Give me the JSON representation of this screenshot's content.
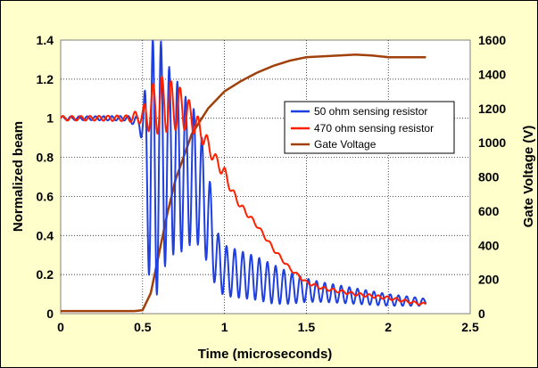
{
  "chart_data": {
    "type": "line",
    "xlabel": "Time (microseconds)",
    "ylabel": "Normalized beam",
    "y2label": "Gate Voltage (V)",
    "xlim": [
      0,
      2.5
    ],
    "ylim": [
      0,
      1.4
    ],
    "y2lim": [
      0,
      1600
    ],
    "xticks": [
      "0",
      "0.5",
      "1",
      "1.5",
      "2",
      "2.5"
    ],
    "yticks": [
      "0",
      "0.2",
      "0.4",
      "0.6",
      "0.8",
      "1",
      "1.2",
      "1.4"
    ],
    "y2ticks": [
      "0",
      "200",
      "400",
      "600",
      "800",
      "1000",
      "1200",
      "1400",
      "1600"
    ],
    "grid": "horizontal dotted",
    "legend_position": "upper-right",
    "series": [
      {
        "name": "50 ohm sensing resistor",
        "axis": "left",
        "color": "#1F3FE0",
        "style": "oscillating",
        "x": [
          0,
          0.2,
          0.4,
          0.48,
          0.5,
          0.55,
          0.6,
          0.65,
          0.7,
          0.75,
          0.8,
          0.85,
          0.9,
          0.95,
          1.0,
          1.1,
          1.2,
          1.3,
          1.4,
          1.5,
          1.6,
          1.8,
          2.0,
          2.2,
          2.23
        ],
        "y": [
          1.0,
          1.0,
          1.0,
          0.98,
          0.95,
          0.7,
          0.78,
          0.78,
          0.76,
          0.72,
          0.72,
          0.65,
          0.5,
          0.28,
          0.22,
          0.2,
          0.18,
          0.15,
          0.13,
          0.12,
          0.11,
          0.09,
          0.07,
          0.06,
          0.06
        ],
        "amp": [
          0.01,
          0.01,
          0.012,
          0.03,
          0.1,
          0.7,
          0.65,
          0.5,
          0.45,
          0.4,
          0.36,
          0.3,
          0.25,
          0.15,
          0.13,
          0.12,
          0.11,
          0.1,
          0.08,
          0.06,
          0.05,
          0.04,
          0.03,
          0.02,
          0.015
        ]
      },
      {
        "name": "470 ohm sensing resistor",
        "axis": "left",
        "color": "#FF2000",
        "style": "oscillating",
        "x": [
          0,
          0.2,
          0.4,
          0.5,
          0.55,
          0.6,
          0.7,
          0.75,
          0.8,
          0.85,
          0.9,
          0.95,
          1.0,
          1.05,
          1.1,
          1.2,
          1.3,
          1.4,
          1.5,
          1.6,
          1.8,
          2.0,
          2.2,
          2.23
        ],
        "y": [
          1.0,
          1.0,
          1.0,
          1.01,
          1.04,
          1.07,
          1.06,
          1.04,
          1.0,
          0.94,
          0.86,
          0.78,
          0.72,
          0.62,
          0.55,
          0.45,
          0.33,
          0.23,
          0.16,
          0.13,
          0.1,
          0.08,
          0.05,
          0.05
        ],
        "amp": [
          0.012,
          0.012,
          0.015,
          0.04,
          0.12,
          0.15,
          0.12,
          0.1,
          0.07,
          0.05,
          0.04,
          0.03,
          0.03,
          0.02,
          0.015,
          0.01,
          0.01,
          0.008,
          0.008,
          0.008,
          0.008,
          0.008,
          0.006,
          0.006
        ]
      },
      {
        "name": "Gate Voltage",
        "axis": "right",
        "color": "#A0400A",
        "style": "smooth",
        "x": [
          0,
          0.45,
          0.5,
          0.55,
          0.6,
          0.65,
          0.7,
          0.8,
          0.9,
          1.0,
          1.1,
          1.2,
          1.3,
          1.4,
          1.5,
          1.6,
          1.7,
          1.8,
          1.9,
          2.0,
          2.1,
          2.2,
          2.23
        ],
        "y": [
          15,
          15,
          20,
          120,
          350,
          580,
          780,
          1050,
          1200,
          1300,
          1360,
          1410,
          1450,
          1480,
          1500,
          1505,
          1510,
          1515,
          1510,
          1500,
          1500,
          1500,
          1500
        ]
      }
    ]
  }
}
